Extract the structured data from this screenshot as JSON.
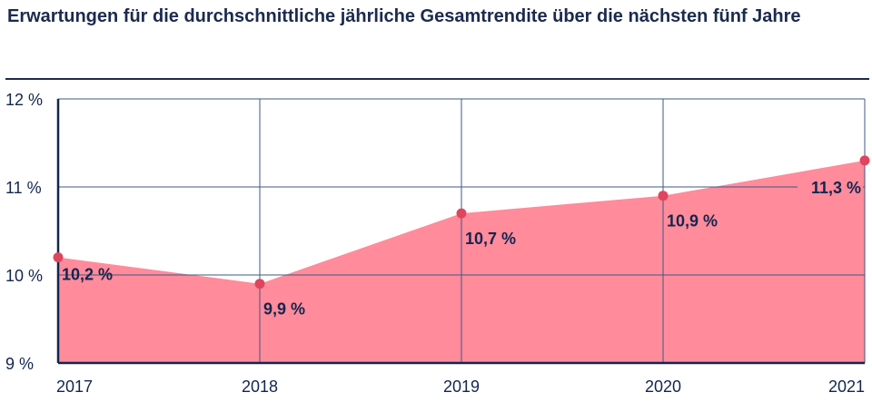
{
  "chart_data": {
    "type": "area",
    "title": "Erwartungen für die durchschnittliche jährliche Gesamtrendite über die nächsten fünf Jahre",
    "xlabel": "",
    "ylabel": "",
    "categories": [
      "2017",
      "2018",
      "2019",
      "2020",
      "2021"
    ],
    "values": [
      10.2,
      9.9,
      10.7,
      10.9,
      11.3
    ],
    "data_labels": [
      "10,2 %",
      "9,9 %",
      "10,7 %",
      "10,9 %",
      "11,3 %"
    ],
    "ylim": [
      9,
      12
    ],
    "yticks": [
      9,
      10,
      11,
      12
    ],
    "ytick_labels": [
      "9 %",
      "10 %",
      "11 %",
      "12 %"
    ],
    "grid": true,
    "colors": {
      "fill": "#ff8b9b",
      "marker": "#e0455e",
      "text": "#13254f",
      "grid": "#3d5a85"
    }
  }
}
